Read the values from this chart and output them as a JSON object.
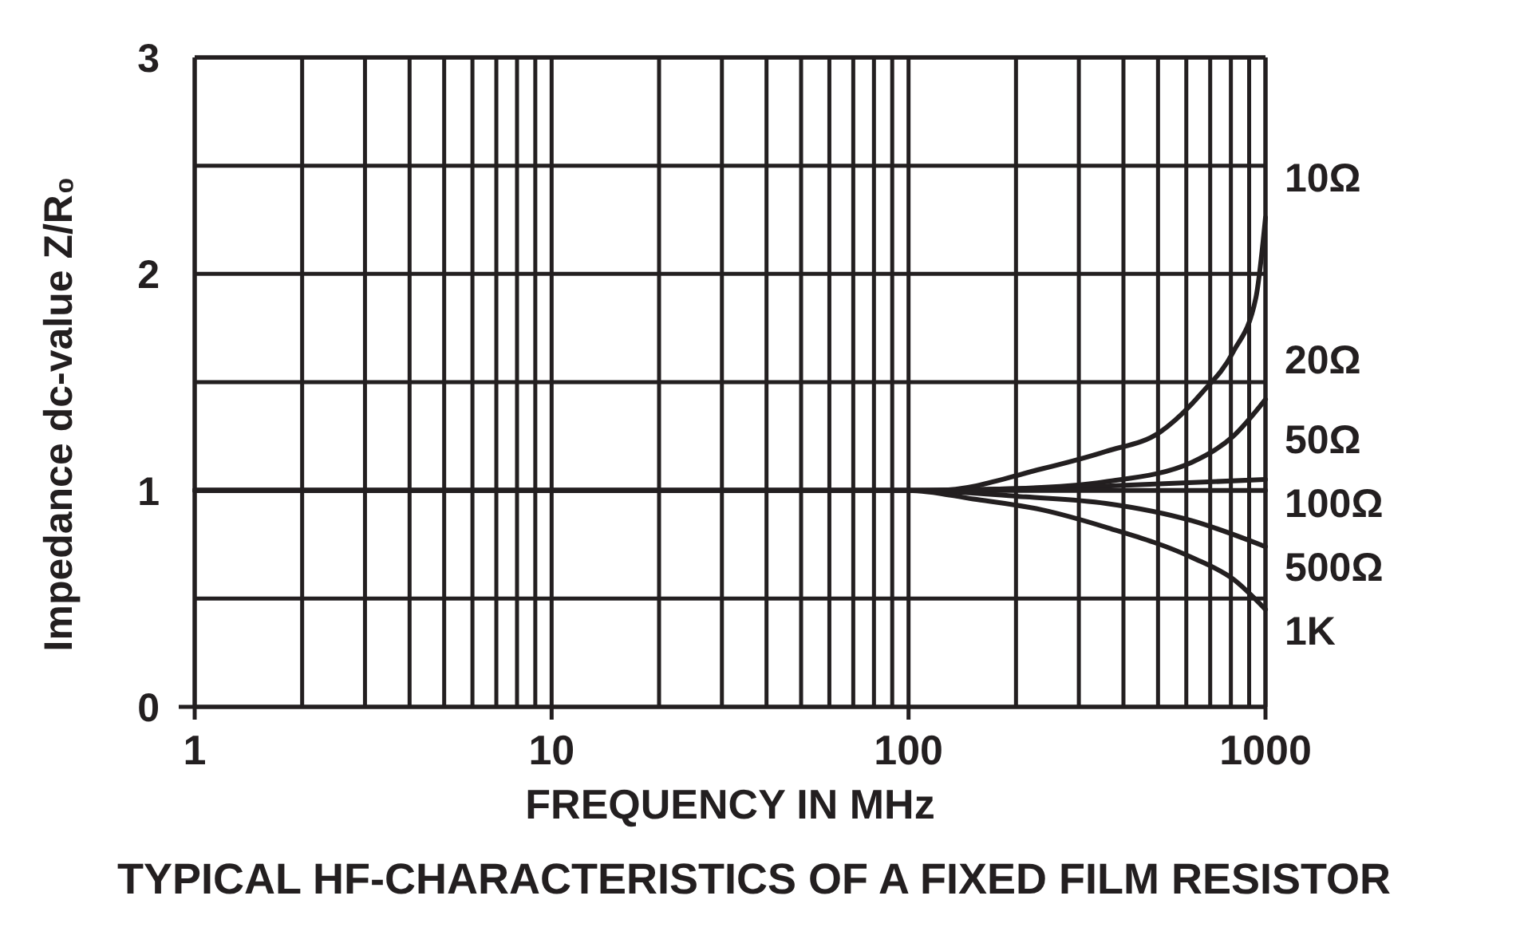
{
  "chart_data": {
    "type": "line",
    "title": "TYPICAL HF-CHARACTERISTICS OF A FIXED FILM RESISTOR",
    "xlabel": "FREQUENCY IN MHz",
    "ylabel": "Impedance dc-value Z/R₀",
    "log": "x",
    "grid": true,
    "marker": "none",
    "line_style": "solid",
    "xlim": [
      1,
      1000
    ],
    "xticks": [
      1,
      {
        "value": 2,
        "label": null
      },
      {
        "value": 3,
        "label": null
      },
      {
        "value": 4,
        "label": null
      },
      {
        "value": 5,
        "label": null
      },
      {
        "value": 6,
        "label": null
      },
      {
        "value": 7,
        "label": null
      },
      {
        "value": 8,
        "label": null
      },
      {
        "value": 9,
        "label": null
      },
      10,
      {
        "value": 20,
        "label": null
      },
      {
        "value": 30,
        "label": null
      },
      {
        "value": 40,
        "label": null
      },
      {
        "value": 50,
        "label": null
      },
      {
        "value": 60,
        "label": null
      },
      {
        "value": 70,
        "label": null
      },
      {
        "value": 80,
        "label": null
      },
      {
        "value": 90,
        "label": null
      },
      100,
      {
        "value": 200,
        "label": null
      },
      {
        "value": 300,
        "label": null
      },
      {
        "value": 400,
        "label": null
      },
      {
        "value": 500,
        "label": null
      },
      {
        "value": 600,
        "label": null
      },
      {
        "value": 700,
        "label": null
      },
      {
        "value": 800,
        "label": null
      },
      {
        "value": 900,
        "label": null
      },
      1000
    ],
    "ylim": [
      0,
      3
    ],
    "yticks": [
      0,
      {
        "value": 0.5,
        "label": null
      },
      1,
      {
        "value": 1.5,
        "label": null
      },
      2,
      {
        "value": 2.5,
        "label": null
      },
      3
    ],
    "series": [
      {
        "name": "10Ω",
        "color": "#231f20",
        "x": [
          1,
          100,
          120,
          237,
          357,
          507,
          663,
          812,
          940,
          1000
        ],
        "values": [
          1,
          1,
          1.0,
          1.1,
          1.18,
          1.27,
          1.45,
          1.64,
          1.89,
          2.26
        ]
      },
      {
        "name": "20Ω",
        "color": "#231f20",
        "x": [
          1,
          100,
          213,
          357,
          622,
          812,
          1000
        ],
        "values": [
          1,
          1,
          1.01,
          1.04,
          1.13,
          1.25,
          1.42
        ]
      },
      {
        "name": "50Ω",
        "color": "#231f20",
        "x": [
          1,
          100,
          357,
          1000
        ],
        "values": [
          1,
          1,
          1.02,
          1.05
        ]
      },
      {
        "name": "100Ω",
        "color": "#231f20",
        "x": [
          1,
          1000
        ],
        "values": [
          1,
          1
        ]
      },
      {
        "name": "500Ω",
        "color": "#231f20",
        "x": [
          1,
          100,
          213,
          357,
          622,
          1000
        ],
        "values": [
          1,
          1,
          0.97,
          0.94,
          0.86,
          0.74
        ]
      },
      {
        "name": "1K",
        "color": "#231f20",
        "x": [
          1,
          100,
          152,
          237,
          357,
          622,
          812,
          1000
        ],
        "values": [
          1,
          1,
          0.96,
          0.91,
          0.83,
          0.69,
          0.59,
          0.45
        ]
      }
    ]
  }
}
